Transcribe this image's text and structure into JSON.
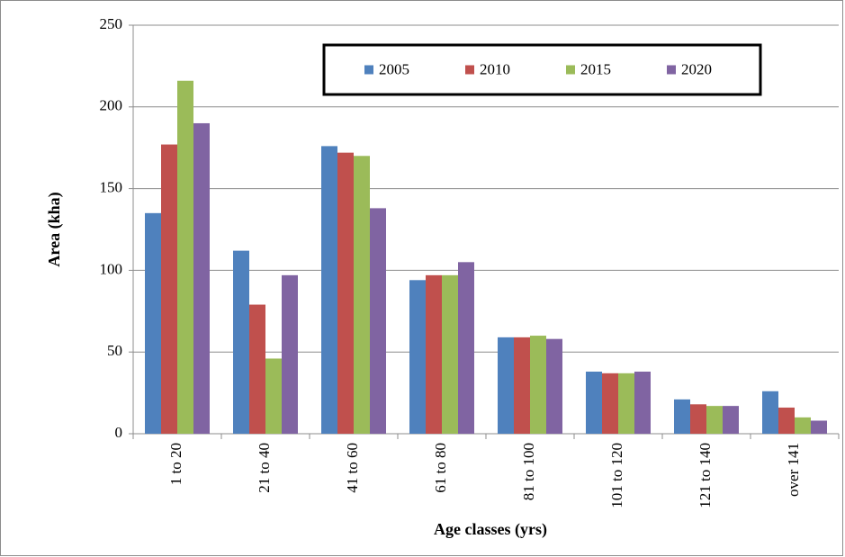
{
  "chart_data": {
    "type": "bar",
    "y_label": "Area (kha)",
    "x_label": "Age classes (yrs)",
    "categories": [
      "1 to 20",
      "21 to 40",
      "41 to 60",
      "61 to 80",
      "81 to 100",
      "101 to 120",
      "121 to 140",
      "over 141"
    ],
    "series": [
      {
        "name": "2005",
        "color": "#4f81bd",
        "values": [
          135,
          112,
          176,
          94,
          59,
          38,
          21,
          26
        ]
      },
      {
        "name": "2010",
        "color": "#c0504d",
        "values": [
          177,
          79,
          172,
          97,
          59,
          37,
          18,
          16
        ]
      },
      {
        "name": "2015",
        "color": "#9bbb59",
        "values": [
          216,
          46,
          170,
          97,
          60,
          37,
          17,
          10
        ]
      },
      {
        "name": "2020",
        "color": "#8064a2",
        "values": [
          190,
          97,
          138,
          105,
          58,
          38,
          17,
          8
        ]
      }
    ],
    "ylim": [
      0,
      250
    ],
    "yticks": [
      0,
      50,
      100,
      150,
      200,
      250
    ],
    "grid": true,
    "legend": "top"
  }
}
